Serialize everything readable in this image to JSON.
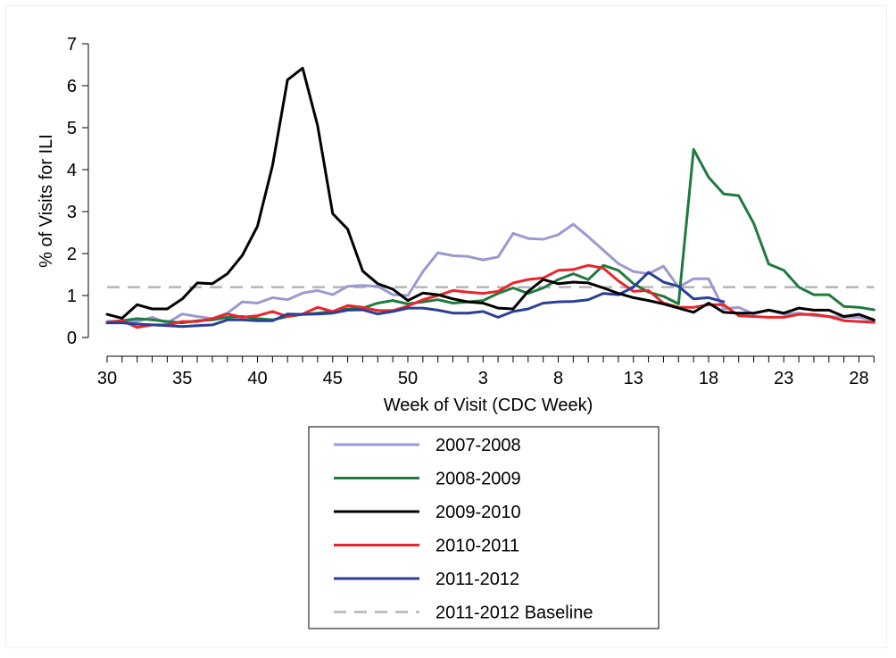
{
  "chart_data": {
    "type": "line",
    "title": "",
    "xlabel": "Week of Visit (CDC Week)",
    "ylabel": "% of Visits for ILI",
    "ylim": [
      0,
      7
    ],
    "yticks": [
      0,
      1,
      2,
      3,
      4,
      5,
      6,
      7
    ],
    "weeks": [
      30,
      31,
      32,
      33,
      34,
      35,
      36,
      37,
      38,
      39,
      40,
      41,
      42,
      43,
      44,
      45,
      46,
      47,
      48,
      49,
      50,
      51,
      52,
      1,
      2,
      3,
      4,
      5,
      6,
      7,
      8,
      9,
      10,
      11,
      12,
      13,
      14,
      15,
      16,
      17,
      18,
      19,
      20,
      21,
      22,
      23,
      24,
      25,
      26,
      27,
      28,
      29
    ],
    "xtick_labels": [
      "30",
      "35",
      "40",
      "45",
      "50",
      "3",
      "8",
      "13",
      "18",
      "23",
      "28"
    ],
    "legend_position": "bottom",
    "grid": false,
    "series": [
      {
        "name": "2007-2008",
        "color": "#9a9ad0",
        "dash": "solid",
        "values": [
          0.38,
          0.4,
          0.38,
          0.48,
          0.35,
          0.56,
          0.5,
          0.45,
          0.58,
          0.85,
          0.82,
          0.95,
          0.9,
          1.06,
          1.12,
          1.02,
          1.22,
          1.24,
          1.22,
          1.02,
          1.0,
          1.57,
          2.02,
          1.95,
          1.93,
          1.85,
          1.92,
          2.48,
          2.36,
          2.34,
          2.45,
          2.7,
          2.4,
          2.08,
          1.76,
          1.57,
          1.52,
          1.7,
          1.2,
          1.4,
          1.4,
          0.68,
          0.72,
          0.56,
          0.66,
          0.55,
          0.58,
          0.52,
          0.5,
          0.48,
          0.48,
          0.4
        ]
      },
      {
        "name": "2008-2009",
        "color": "#1f7a3e",
        "dash": "solid",
        "values": [
          0.35,
          0.4,
          0.45,
          0.42,
          0.38,
          0.35,
          0.4,
          0.42,
          0.48,
          0.5,
          0.45,
          0.42,
          0.5,
          0.55,
          0.58,
          0.62,
          0.68,
          0.7,
          0.82,
          0.88,
          0.8,
          0.85,
          0.9,
          0.82,
          0.85,
          0.88,
          1.05,
          1.18,
          1.05,
          1.18,
          1.38,
          1.52,
          1.38,
          1.72,
          1.6,
          1.28,
          1.08,
          0.98,
          0.8,
          4.48,
          3.82,
          3.42,
          3.38,
          2.72,
          1.75,
          1.6,
          1.2,
          1.02,
          1.02,
          0.74,
          0.72,
          0.66
        ]
      },
      {
        "name": "2009-2010",
        "color": "#000000",
        "dash": "solid",
        "values": [
          0.55,
          0.46,
          0.78,
          0.68,
          0.68,
          0.92,
          1.3,
          1.28,
          1.52,
          1.96,
          2.65,
          4.1,
          6.14,
          6.42,
          5.05,
          2.95,
          2.58,
          1.58,
          1.28,
          1.15,
          0.88,
          1.06,
          1.02,
          0.92,
          0.85,
          0.82,
          0.7,
          0.68,
          1.1,
          1.38,
          1.28,
          1.32,
          1.3,
          1.18,
          1.05,
          0.95,
          0.88,
          0.8,
          0.7,
          0.6,
          0.82,
          0.6,
          0.58,
          0.58,
          0.65,
          0.58,
          0.7,
          0.65,
          0.65,
          0.5,
          0.55,
          0.42
        ]
      },
      {
        "name": "2010-2011",
        "color": "#e8262b",
        "dash": "solid",
        "values": [
          0.36,
          0.4,
          0.24,
          0.3,
          0.3,
          0.38,
          0.38,
          0.45,
          0.56,
          0.48,
          0.52,
          0.62,
          0.5,
          0.56,
          0.72,
          0.62,
          0.76,
          0.72,
          0.64,
          0.64,
          0.75,
          0.9,
          1.0,
          1.12,
          1.08,
          1.05,
          1.1,
          1.3,
          1.38,
          1.42,
          1.6,
          1.62,
          1.72,
          1.65,
          1.35,
          1.1,
          1.12,
          0.82,
          0.72,
          0.72,
          0.78,
          0.78,
          0.52,
          0.5,
          0.48,
          0.48,
          0.55,
          0.55,
          0.5,
          0.4,
          0.38,
          0.36
        ]
      },
      {
        "name": "2011-2012",
        "color": "#2b3f95",
        "dash": "solid",
        "values": [
          0.35,
          0.35,
          0.32,
          0.3,
          0.28,
          0.26,
          0.28,
          0.3,
          0.42,
          0.42,
          0.4,
          0.4,
          0.56,
          0.55,
          0.56,
          0.58,
          0.65,
          0.66,
          0.56,
          0.62,
          0.7,
          0.7,
          0.65,
          0.58,
          0.58,
          0.62,
          0.48,
          0.62,
          0.68,
          0.82,
          0.85,
          0.86,
          0.9,
          1.05,
          1.02,
          1.2,
          1.55,
          1.32,
          1.22,
          0.92,
          0.95,
          0.85
        ]
      },
      {
        "name": "2011-2012 Baseline",
        "color": "#b4b4b4",
        "dash": "dashed",
        "values": [
          1.2,
          1.2,
          1.2,
          1.2,
          1.2,
          1.2,
          1.2,
          1.2,
          1.2,
          1.2,
          1.2,
          1.2,
          1.2,
          1.2,
          1.2,
          1.2,
          1.2,
          1.2,
          1.2,
          1.2,
          1.2,
          1.2,
          1.2,
          1.2,
          1.2,
          1.2,
          1.2,
          1.2,
          1.2,
          1.2,
          1.2,
          1.2,
          1.2,
          1.2,
          1.2,
          1.2,
          1.2,
          1.2,
          1.2,
          1.2,
          1.2,
          1.2,
          1.2,
          1.2,
          1.2,
          1.2,
          1.2,
          1.2,
          1.2,
          1.2,
          1.2,
          1.2
        ]
      }
    ]
  }
}
